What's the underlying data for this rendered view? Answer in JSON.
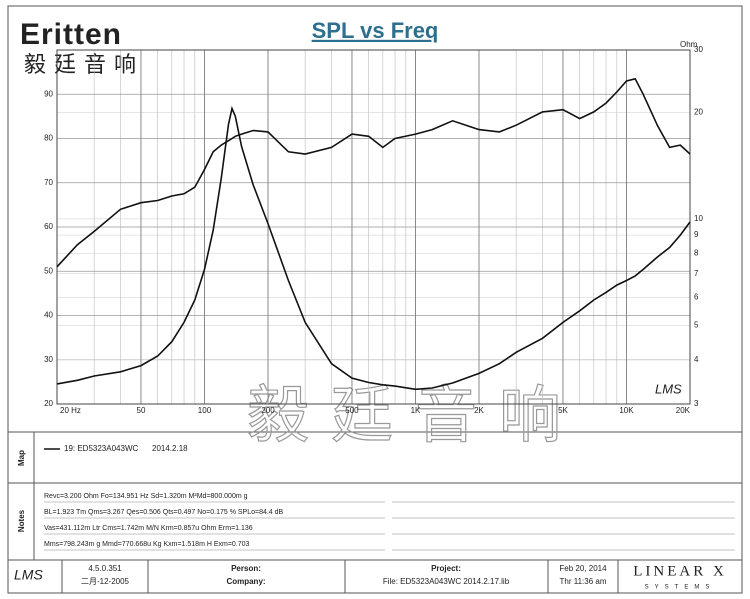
{
  "header": {
    "brand": "Eritten",
    "brand_sub": "毅廷音响"
  },
  "chart_data": {
    "type": "line",
    "title": "SPL vs Freq",
    "y2_label": "Ohm",
    "plot_mark": "LMS",
    "watermark": "毅廷音响",
    "xscale": "log",
    "xlim": [
      20,
      20000
    ],
    "xticks": [
      {
        "value": 20,
        "label": "20 Hz"
      },
      50,
      100,
      200,
      500,
      {
        "value": 1000,
        "label": "1K"
      },
      {
        "value": 2000,
        "label": "2K"
      },
      {
        "value": 5000,
        "label": "5K"
      },
      {
        "value": 10000,
        "label": "10K"
      },
      {
        "value": 20000,
        "label": "20K"
      }
    ],
    "ylim": [
      20,
      100
    ],
    "yticks": [
      20,
      30,
      40,
      50,
      60,
      70,
      80,
      90
    ],
    "y2scale": "log",
    "y2lim": [
      3,
      30
    ],
    "y2ticks": [
      3,
      4,
      5,
      6,
      7,
      8,
      9,
      10,
      20,
      30
    ],
    "grid": true,
    "x": [
      20,
      25,
      30,
      40,
      50,
      60,
      70,
      80,
      90,
      100,
      110,
      120,
      130,
      135,
      140,
      150,
      170,
      200,
      250,
      300,
      400,
      500,
      600,
      700,
      800,
      1000,
      1200,
      1500,
      2000,
      2500,
      3000,
      4000,
      5000,
      6000,
      7000,
      8000,
      9000,
      10000,
      11000,
      12000,
      14000,
      16000,
      18000,
      20000
    ],
    "series": [
      {
        "color": "#111111",
        "values": [
          51,
          56,
          59,
          64,
          65.5,
          66,
          67,
          67.5,
          69,
          73,
          77,
          78.5,
          79.5,
          80,
          80.5,
          81,
          81.8,
          81.5,
          77,
          76.5,
          78,
          81,
          80.5,
          78,
          80,
          81,
          82,
          84,
          82,
          81.5,
          83,
          86,
          86.5,
          84.5,
          86,
          88,
          90.5,
          93,
          93.5,
          90,
          83,
          78,
          78.5,
          76.5
        ]
      },
      {
        "color": "#111111",
        "axis": "y2",
        "values": [
          3.42,
          3.5,
          3.6,
          3.7,
          3.85,
          4.1,
          4.5,
          5.1,
          5.9,
          7.2,
          9.3,
          13,
          18.5,
          20.5,
          19.5,
          16,
          12.5,
          9.7,
          6.7,
          5.1,
          3.9,
          3.55,
          3.45,
          3.4,
          3.37,
          3.3,
          3.33,
          3.44,
          3.66,
          3.9,
          4.2,
          4.6,
          5.1,
          5.5,
          5.9,
          6.2,
          6.5,
          6.7,
          6.9,
          7.2,
          7.8,
          8.3,
          9,
          9.8
        ]
      }
    ]
  },
  "map": {
    "label": "Map",
    "entry": "19: ED5323A043WC",
    "date": "2014.2.18"
  },
  "notes": {
    "label": "Notes",
    "lines": [
      "Revc=3.200 Ohm  Fo=134.951 Hz  Sd=1.320m M²Md=800.000m g",
      "BL=1.923 Tm  Qms=3.267  Qes=0.506  Qts=0.497  No=0.175 %  SPLo=84.4 dB",
      "Vas=431.112m Ltr  Cms=1.742m M/N  Krm=0.857u Ohm  Erm=1.136",
      "Mms=798.243m g  Mmd=770.668u Kg  Kxm=1.518m H  Exm=0.703"
    ]
  },
  "footer": {
    "logo": "LMS",
    "version": "4.5.0.351",
    "build": "二月-12-2005",
    "person": "Person:",
    "company": "Company:",
    "project": "Project:",
    "file": "File: ED5323A043WC  2014.2.17.lib",
    "date": "Feb 20, 2014",
    "time": "Thr 11:36 am",
    "brand": "LINEAR X",
    "brand_sub": "SYSTEMS"
  }
}
